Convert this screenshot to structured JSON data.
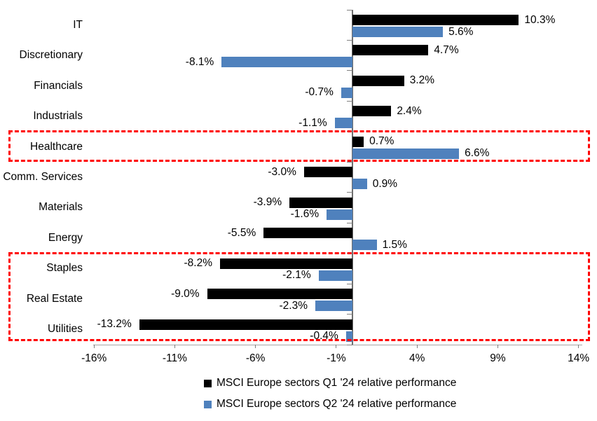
{
  "chart_data": {
    "type": "bar",
    "orientation": "horizontal",
    "title": "",
    "categories": [
      "IT",
      "Discretionary",
      "Financials",
      "Industrials",
      "Healthcare",
      "Comm. Services",
      "Materials",
      "Energy",
      "Staples",
      "Real Estate",
      "Utilities"
    ],
    "series": [
      {
        "name": "MSCI Europe sectors Q1 '24 relative performance",
        "color": "#000000",
        "values": [
          10.3,
          4.7,
          3.2,
          2.4,
          0.7,
          -3.0,
          -3.9,
          -5.5,
          -8.2,
          -9.0,
          -13.2
        ],
        "labels": [
          "10.3%",
          "4.7%",
          "3.2%",
          "2.4%",
          "0.7%",
          "-3.0%",
          "-3.9%",
          "-5.5%",
          "-8.2%",
          "-9.0%",
          "-13.2%"
        ]
      },
      {
        "name": "MSCI Europe sectors Q2 '24 relative performance",
        "color": "#4f81bd",
        "values": [
          5.6,
          -8.1,
          -0.7,
          -1.1,
          6.6,
          0.9,
          -1.6,
          1.5,
          -2.1,
          -2.3,
          -0.4
        ],
        "labels": [
          "5.6%",
          "-8.1%",
          "-0.7%",
          "-1.1%",
          "6.6%",
          "0.9%",
          "-1.6%",
          "1.5%",
          "-2.1%",
          "-2.3%",
          "-0.4%"
        ]
      }
    ],
    "x_axis": {
      "min": -16,
      "max": 14,
      "tick_values": [
        -16,
        -11,
        -6,
        -1,
        4,
        9,
        14
      ],
      "tick_labels": [
        "-16%",
        "-11%",
        "-6%",
        "-1%",
        "4%",
        "9%",
        "14%"
      ]
    },
    "grid": false,
    "legend_position": "bottom",
    "annotations": [
      {
        "type": "highlight-box",
        "color": "#ff0000",
        "sectors": [
          "Healthcare"
        ]
      },
      {
        "type": "highlight-box",
        "color": "#ff0000",
        "sectors": [
          "Staples",
          "Real Estate",
          "Utilities"
        ]
      }
    ]
  }
}
